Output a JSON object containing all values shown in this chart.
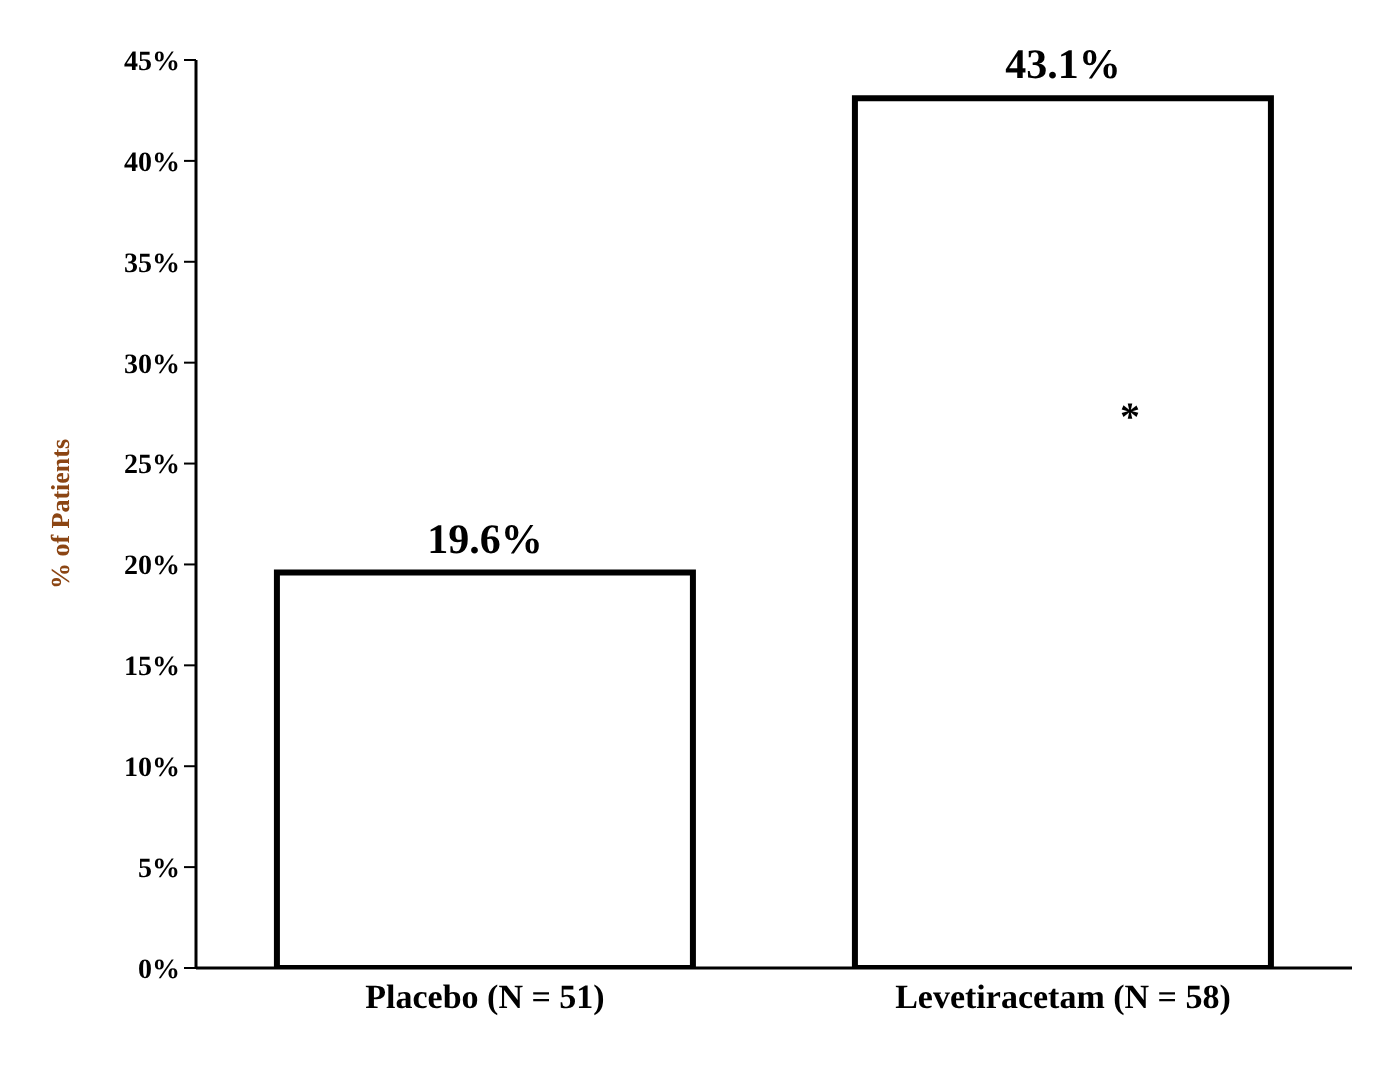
{
  "chart_data": {
    "type": "bar",
    "ylabel": "% of Patients",
    "categories": [
      "Placebo (N = 51)",
      "Levetiracetam (N = 58)"
    ],
    "values": [
      19.6,
      43.1
    ],
    "value_labels": [
      "19.6%",
      "43.1%"
    ],
    "color": "#ffffff",
    "ylim": [
      0,
      45
    ],
    "yticks": [
      {
        "value": 0,
        "label": "0%"
      },
      {
        "value": 5,
        "label": "5%"
      },
      {
        "value": 10,
        "label": "10%"
      },
      {
        "value": 15,
        "label": "15%"
      },
      {
        "value": 20,
        "label": "20%"
      },
      {
        "value": 25,
        "label": "25%"
      },
      {
        "value": 30,
        "label": "30%"
      },
      {
        "value": 35,
        "label": "35%"
      },
      {
        "value": 40,
        "label": "40%"
      },
      {
        "value": 45,
        "label": "45%"
      }
    ],
    "annotations": [
      "*"
    ],
    "grid": false,
    "legend": false
  }
}
